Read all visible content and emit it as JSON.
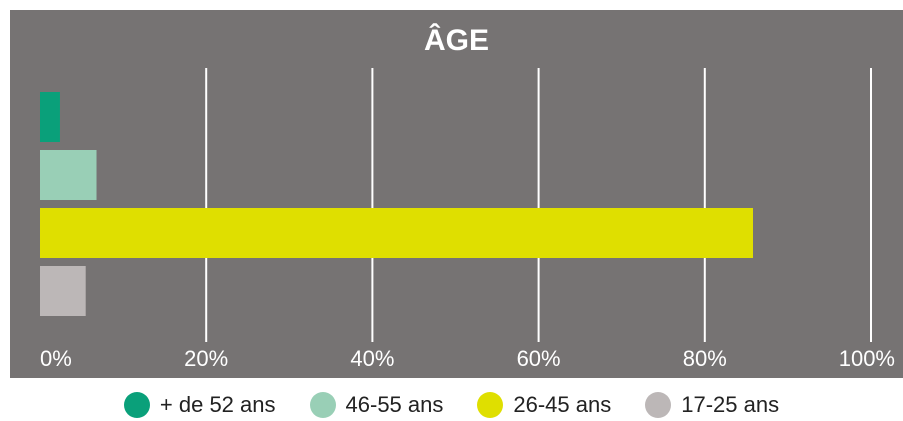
{
  "chart_data": {
    "type": "bar",
    "orientation": "horizontal",
    "title": "ÂGE",
    "xlabel": "",
    "ylabel": "",
    "xlim": [
      0,
      100
    ],
    "x_ticks": [
      "0%",
      "20%",
      "40%",
      "60%",
      "80%",
      "100%"
    ],
    "grid": true,
    "legend_position": "bottom",
    "categories": [
      "+ de 52 ans",
      "46-55 ans",
      "26-45 ans",
      "17-25 ans"
    ],
    "values": [
      2.4,
      6.8,
      85.8,
      5.5
    ],
    "colors": [
      "#0aa07a",
      "#99cfb6",
      "#dfdf00",
      "#bcb7b7"
    ]
  },
  "style": {
    "panel_bg": "#767373",
    "grid_color": "#ffffff",
    "text_color": "#ffffff",
    "legend_text_color": "#222222"
  }
}
